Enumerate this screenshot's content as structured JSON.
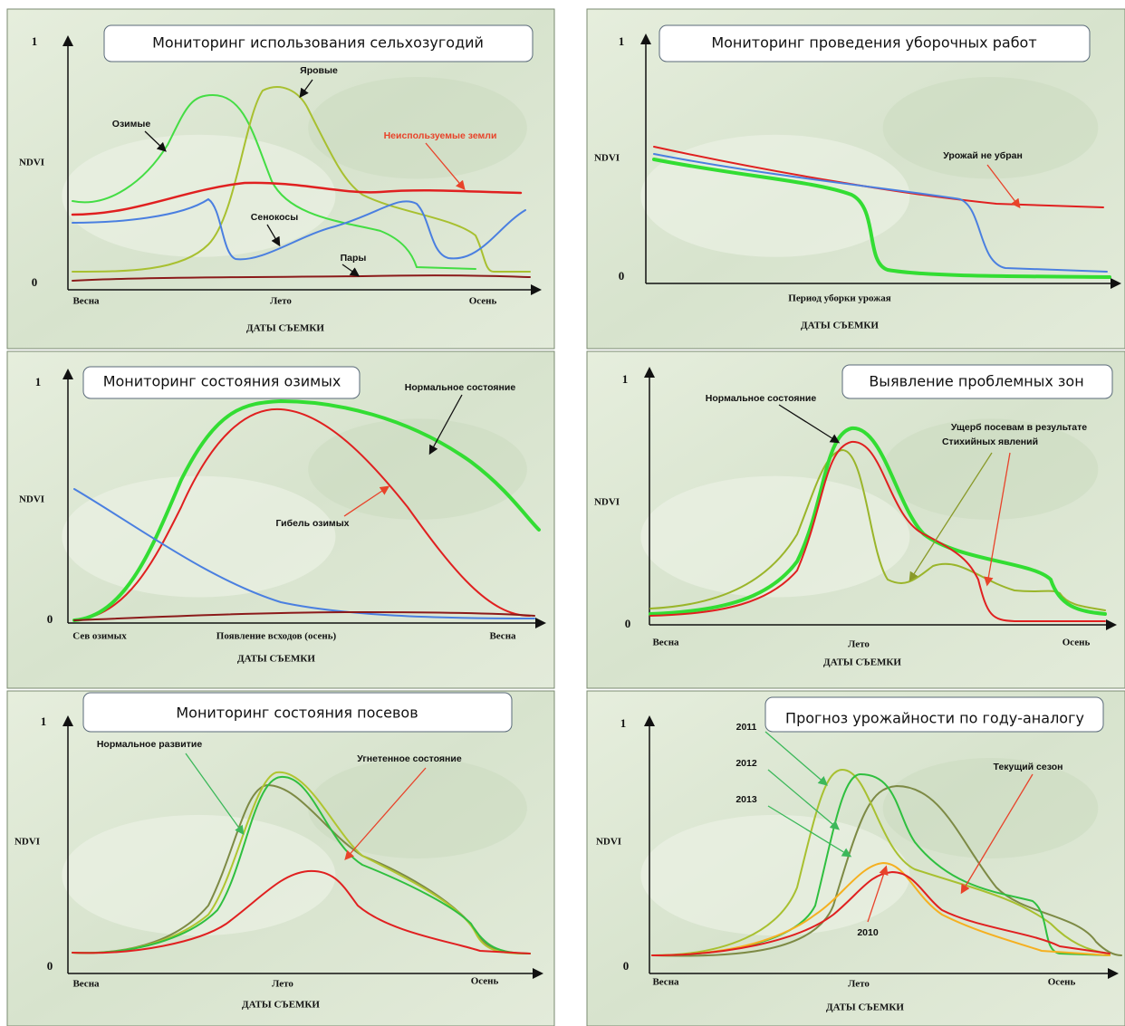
{
  "panels": [
    {
      "title": "Мониторинг использования сельхозугодий",
      "y_max": "1",
      "y_min": "0",
      "y_label": "NDVI",
      "x_labels": [
        "Весна",
        "Лето",
        "Осень"
      ],
      "x_title": "ДАТЫ СЪЕМКИ",
      "annotations": [
        "Яровые",
        "Озимые",
        "Неиспользуемые земли",
        "Сенокосы",
        "Пары"
      ]
    },
    {
      "title": "Мониторинг проведения уборочных работ",
      "y_max": "1",
      "y_min": "0",
      "y_label": "NDVI",
      "x_labels": [
        "Период уборки урожая"
      ],
      "x_title": "ДАТЫ СЪЕМКИ",
      "annotations": [
        "Урожай не убран"
      ]
    },
    {
      "title": "Мониторинг состояния озимых",
      "y_max": "1",
      "y_min": "0",
      "y_label": "NDVI",
      "x_labels": [
        "Сев озимых",
        "Появление всходов (осень)",
        "Весна"
      ],
      "x_title": "ДАТЫ СЪЕМКИ",
      "annotations": [
        "Нормальное состояние",
        "Гибель озимых"
      ]
    },
    {
      "title": "Выявление проблемных зон",
      "y_max": "1",
      "y_min": "0",
      "y_label": "NDVI",
      "x_labels": [
        "Весна",
        "Лето",
        "Осень"
      ],
      "x_title": "ДАТЫ СЪЕМКИ",
      "annotations": [
        "Нормальное состояние",
        "Ущерб посевам в результате",
        "Стихийных явлений"
      ]
    },
    {
      "title": "Мониторинг состояния посевов",
      "y_max": "1",
      "y_min": "0",
      "y_label": "NDVI",
      "x_labels": [
        "Весна",
        "Лето",
        "Осень"
      ],
      "x_title": "ДАТЫ СЪЕМКИ",
      "annotations": [
        "Нормальное развитие",
        "Угнетенное состояние"
      ]
    },
    {
      "title": "Прогноз урожайности по году-аналогу",
      "y_max": "1",
      "y_min": "0",
      "y_label": "NDVI",
      "x_labels": [
        "Весна",
        "Лето",
        "Осень"
      ],
      "x_title": "ДАТЫ СЪЕМКИ",
      "annotations": [
        "2011",
        "2012",
        "2013",
        "Текущий сезон",
        "2010"
      ]
    }
  ]
}
